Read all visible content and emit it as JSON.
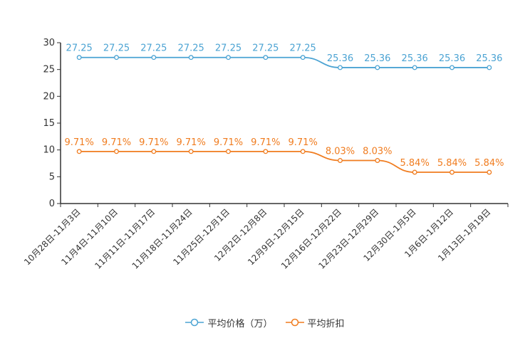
{
  "chart_data": {
    "type": "line",
    "categories": [
      "10月28日-11月3日",
      "11月4日-11月10日",
      "11月11日-11月17日",
      "11月18日-11月24日",
      "11月25日-12月1日",
      "12月2日-12月8日",
      "12月9日-12月15日",
      "12月16日-12月22日",
      "12月23日-12月29日",
      "12月30日-1月5日",
      "1月6日-1月12日",
      "1月13日-1月19日"
    ],
    "series": [
      {
        "name": "平均价格（万）",
        "color": "#4ba3d3",
        "values": [
          27.25,
          27.25,
          27.25,
          27.25,
          27.25,
          27.25,
          27.25,
          25.36,
          25.36,
          25.36,
          25.36,
          25.36
        ],
        "labels": [
          "27.25",
          "27.25",
          "27.25",
          "27.25",
          "27.25",
          "27.25",
          "27.25",
          "25.36",
          "25.36",
          "25.36",
          "25.36",
          "25.36"
        ]
      },
      {
        "name": "平均折扣",
        "color": "#f07c1f",
        "values": [
          9.71,
          9.71,
          9.71,
          9.71,
          9.71,
          9.71,
          9.71,
          8.03,
          8.03,
          5.84,
          5.84,
          5.84
        ],
        "labels": [
          "9.71%",
          "9.71%",
          "9.71%",
          "9.71%",
          "9.71%",
          "9.71%",
          "9.71%",
          "8.03%",
          "8.03%",
          "5.84%",
          "5.84%",
          "5.84%"
        ]
      }
    ],
    "ylim": [
      0,
      30
    ],
    "yticks": [
      "0",
      "5",
      "10",
      "15",
      "20",
      "25",
      "30"
    ],
    "xlabel": "",
    "ylabel": "",
    "title": "",
    "legend_position": "bottom"
  }
}
